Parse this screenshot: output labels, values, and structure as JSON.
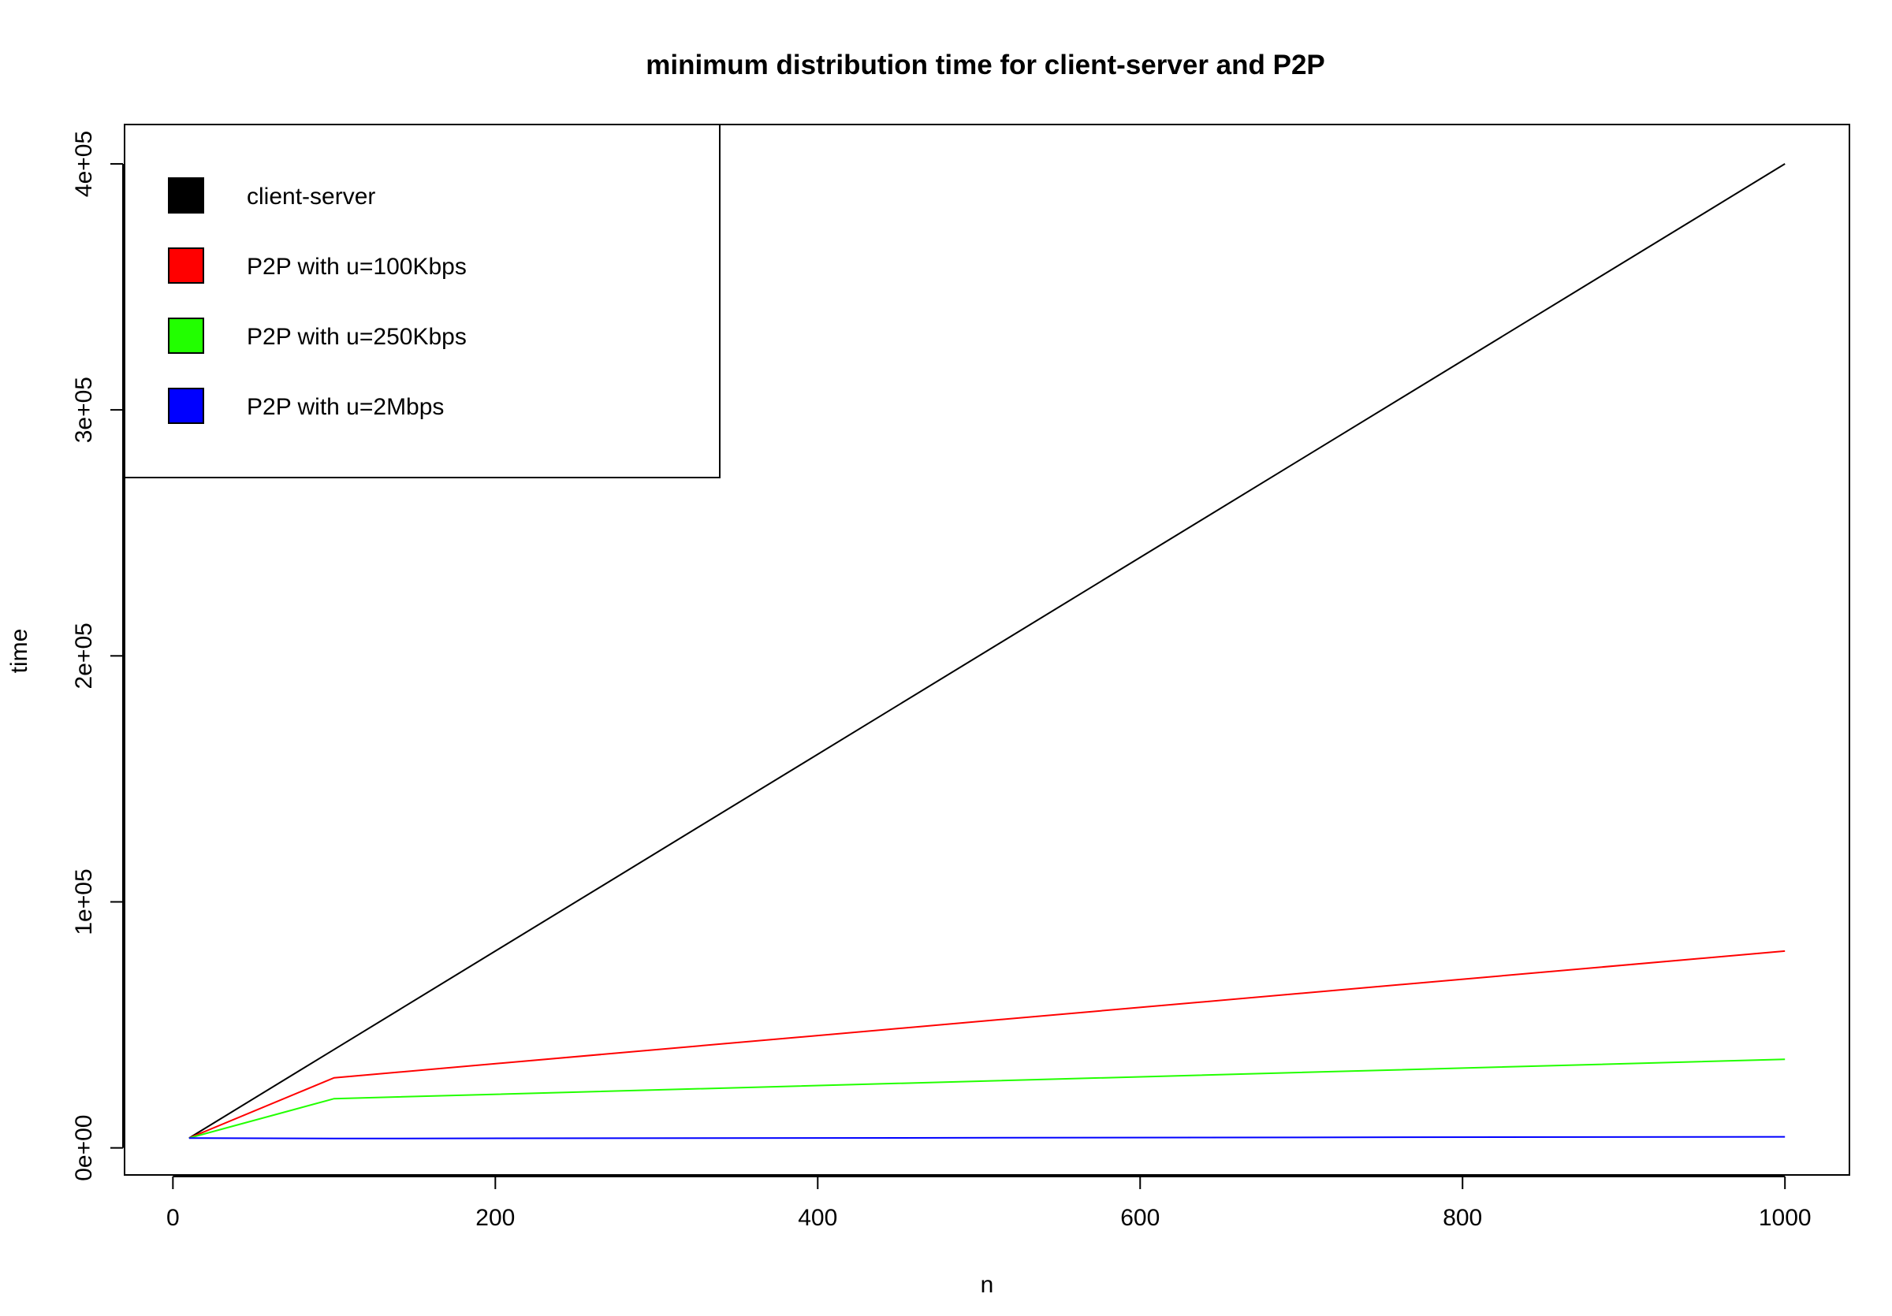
{
  "chart_data": {
    "type": "line",
    "title": "minimum distribution time for client-server and P2P",
    "xlabel": "n",
    "ylabel": "time",
    "xlim": [
      -30,
      1040
    ],
    "ylim": [
      -11000,
      416000
    ],
    "x_ticks": [
      0,
      200,
      400,
      600,
      800,
      1000
    ],
    "x_tick_labels": [
      "0",
      "200",
      "400",
      "600",
      "800",
      "1000"
    ],
    "y_ticks": [
      0,
      100000,
      200000,
      300000,
      400000
    ],
    "y_tick_labels": [
      "0e+00",
      "1e+05",
      "2e+05",
      "3e+05",
      "4e+05"
    ],
    "grid": false,
    "legend_position": "top-left",
    "series": [
      {
        "name": "client-server",
        "color": "#000000",
        "x": [
          10,
          100,
          1000
        ],
        "y": [
          4000,
          40000,
          400000
        ]
      },
      {
        "name": "P2P with u=100Kbps",
        "color": "#ff0000",
        "x": [
          10,
          100,
          1000
        ],
        "y": [
          4000,
          28500,
          80000
        ]
      },
      {
        "name": "P2P with u=250Kbps",
        "color": "#22ff00",
        "x": [
          10,
          100,
          1000
        ],
        "y": [
          4000,
          20000,
          36000
        ]
      },
      {
        "name": "P2P with u=2Mbps",
        "color": "#0000ff",
        "x": [
          10,
          100,
          1000
        ],
        "y": [
          4000,
          3800,
          4500
        ]
      }
    ]
  }
}
